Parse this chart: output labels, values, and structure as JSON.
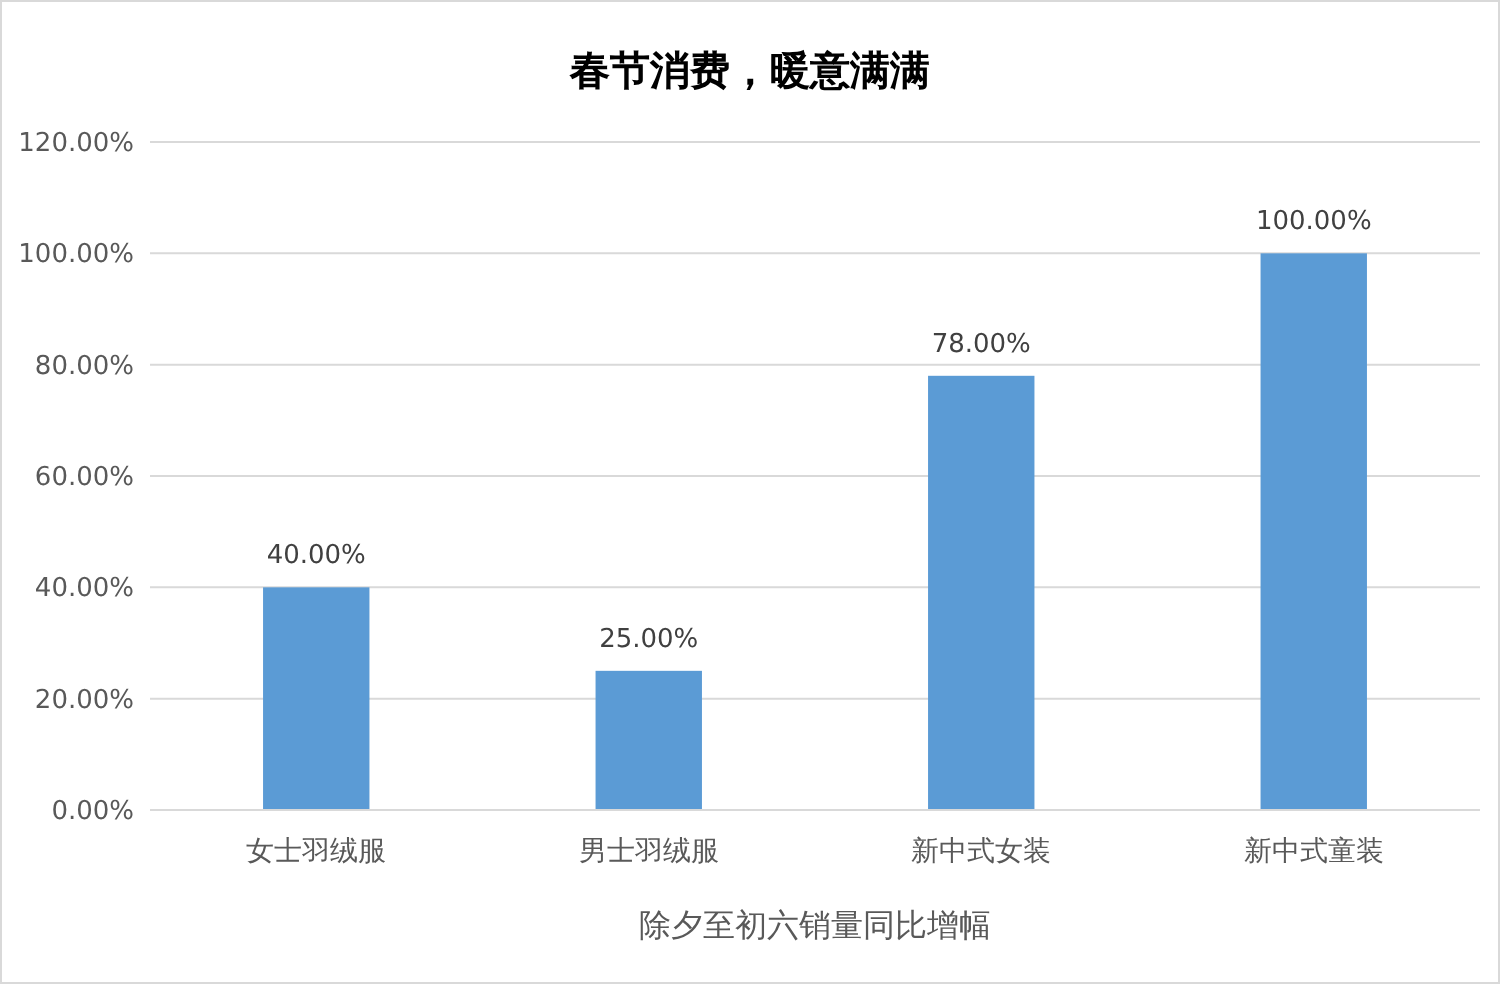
{
  "chart_data": {
    "type": "bar",
    "title": "春节消费，暖意满满",
    "xlabel": "除夕至初六销量同比增幅",
    "categories": [
      "女士羽绒服",
      "男士羽绒服",
      "新中式女装",
      "新中式童装"
    ],
    "values": [
      40,
      25,
      78,
      100
    ],
    "color": "#5b9bd5",
    "value_labels": [
      "40.00%",
      "25.00%",
      "78.00%",
      "100.00%"
    ],
    "ylim": [
      0,
      120
    ],
    "yticks": [
      {
        "value": 0,
        "label": "0.00%"
      },
      {
        "value": 20,
        "label": "20.00%"
      },
      {
        "value": 40,
        "label": "40.00%"
      },
      {
        "value": 60,
        "label": "60.00%"
      },
      {
        "value": 80,
        "label": "80.00%"
      },
      {
        "value": 100,
        "label": "100.00%"
      },
      {
        "value": 120,
        "label": "120.00%"
      }
    ],
    "grid": "y"
  }
}
